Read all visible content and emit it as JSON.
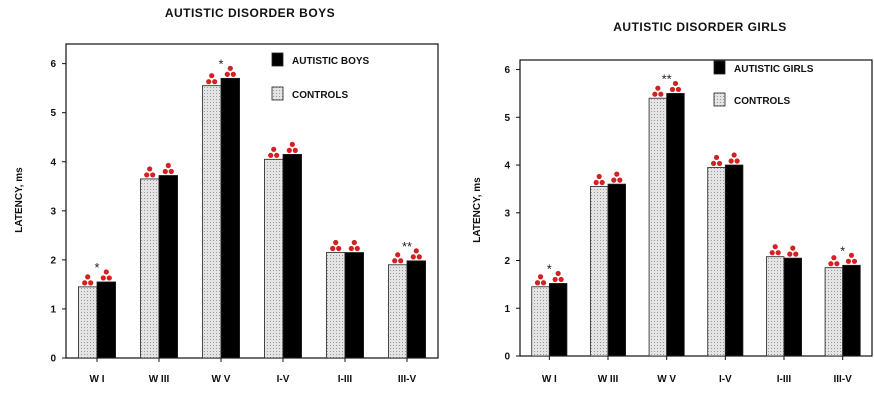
{
  "chart_data": [
    {
      "type": "bar",
      "title": "AUTISTIC DISORDER     BOYS",
      "ylabel": "LATENCY, ms",
      "ylim": [
        0,
        6.4
      ],
      "yticks": [
        "0",
        "1",
        "2",
        "3",
        "4",
        "5",
        "6"
      ],
      "categories": [
        "W I",
        "W III",
        "W V",
        "I-V",
        "I-III",
        "III-V"
      ],
      "series": [
        {
          "name": "CONTROLS",
          "color": "#d4d4d4",
          "pattern": "stippled",
          "values": [
            1.45,
            3.65,
            5.55,
            4.05,
            2.15,
            1.9
          ]
        },
        {
          "name": "AUTISTIC BOYS",
          "color": "#000000",
          "values": [
            1.55,
            3.72,
            5.7,
            4.15,
            2.15,
            1.98
          ]
        }
      ],
      "significance": [
        "*",
        "",
        "*",
        "",
        "",
        "**"
      ],
      "legend": "top-right",
      "grid": false
    },
    {
      "type": "bar",
      "title": "AUTISTIC DISORDER     GIRLS",
      "ylabel": "LATENCY, ms",
      "ylim": [
        0,
        6.2
      ],
      "yticks": [
        "0",
        "1",
        "2",
        "3",
        "4",
        "5",
        "6"
      ],
      "categories": [
        "W I",
        "W III",
        "W V",
        "I-V",
        "I-III",
        "III-V"
      ],
      "series": [
        {
          "name": "CONTROLS",
          "color": "#d4d4d4",
          "pattern": "stippled",
          "values": [
            1.45,
            3.55,
            5.4,
            3.95,
            2.08,
            1.85
          ]
        },
        {
          "name": "AUTISTIC GIRLS",
          "color": "#000000",
          "values": [
            1.52,
            3.6,
            5.5,
            4.0,
            2.05,
            1.9
          ]
        }
      ],
      "significance": [
        "*",
        "",
        "**",
        "",
        "",
        "*"
      ],
      "legend": "top-right",
      "grid": false
    }
  ]
}
